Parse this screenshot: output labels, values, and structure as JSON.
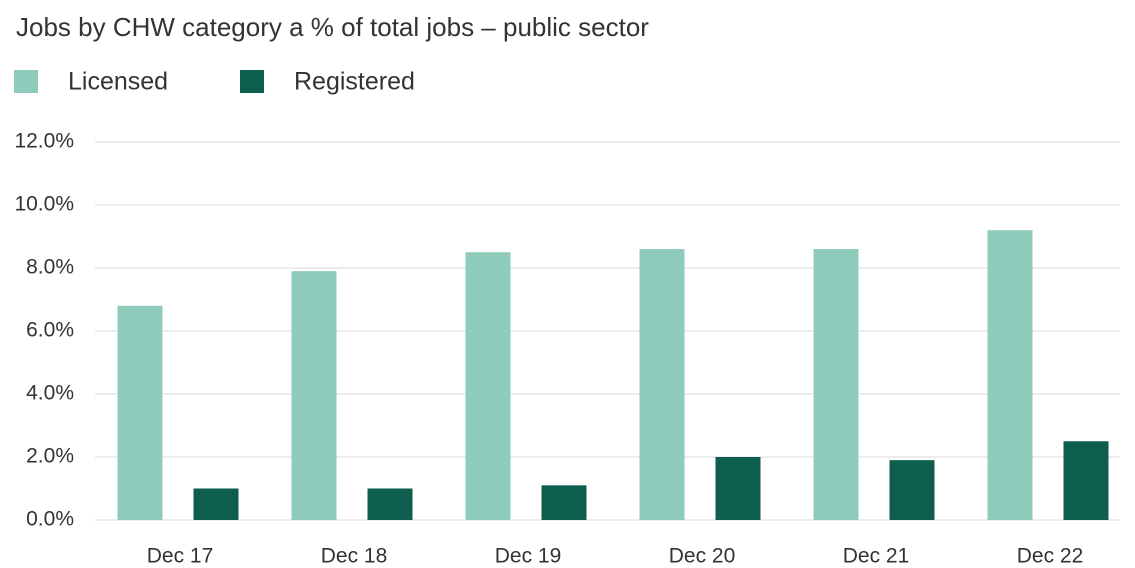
{
  "chart_data": {
    "type": "bar",
    "title": "Jobs by CHW category a % of total jobs – public sector",
    "categories": [
      "Dec 17",
      "Dec 18",
      "Dec 19",
      "Dec 20",
      "Dec 21",
      "Dec 22"
    ],
    "series": [
      {
        "name": "Licensed",
        "color": "#8ecbbb",
        "values": [
          6.8,
          7.9,
          8.5,
          8.6,
          8.6,
          9.2
        ]
      },
      {
        "name": "Registered",
        "color": "#0e5e4e",
        "values": [
          1.0,
          1.0,
          1.1,
          2.0,
          1.9,
          2.5
        ]
      }
    ],
    "ylim": [
      0,
      12
    ],
    "yticks": [
      {
        "value": 0,
        "label": "0.0%"
      },
      {
        "value": 2,
        "label": "2.0%"
      },
      {
        "value": 4,
        "label": "4.0%"
      },
      {
        "value": 6,
        "label": "6.0%"
      },
      {
        "value": 8,
        "label": "8.0%"
      },
      {
        "value": 10,
        "label": "10.0%"
      },
      {
        "value": 12,
        "label": "12.0%"
      }
    ],
    "grid": true,
    "legend": "top-left"
  }
}
